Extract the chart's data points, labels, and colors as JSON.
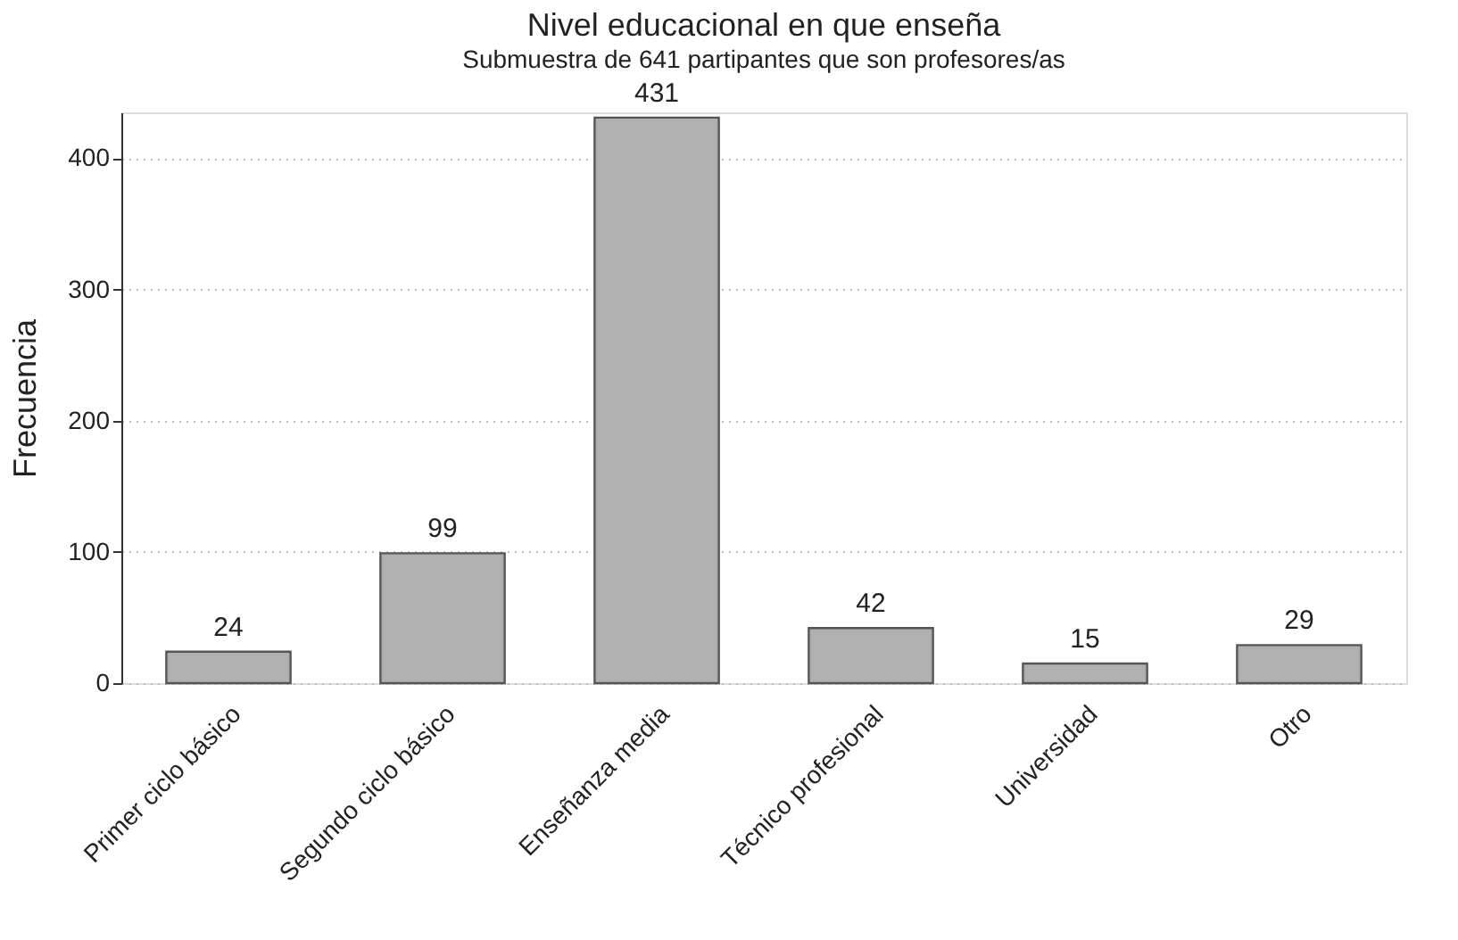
{
  "chart_data": {
    "type": "bar",
    "title": "Nivel educacional en que enseña",
    "subtitle": "Submuestra de 641 partipantes que son profesores/as",
    "ylabel": "Frecuencia",
    "categories": [
      "Primer ciclo básico",
      "Segundo ciclo básico",
      "Enseñanza media",
      "Técnico profesional",
      "Universidad",
      "Otro"
    ],
    "values": [
      24,
      99,
      431,
      42,
      15,
      29
    ],
    "color": "#b0b0b0",
    "ylim": [
      0,
      435
    ],
    "yticks": [
      0,
      100,
      200,
      300,
      400
    ],
    "grid": "y",
    "data_labels": true
  }
}
